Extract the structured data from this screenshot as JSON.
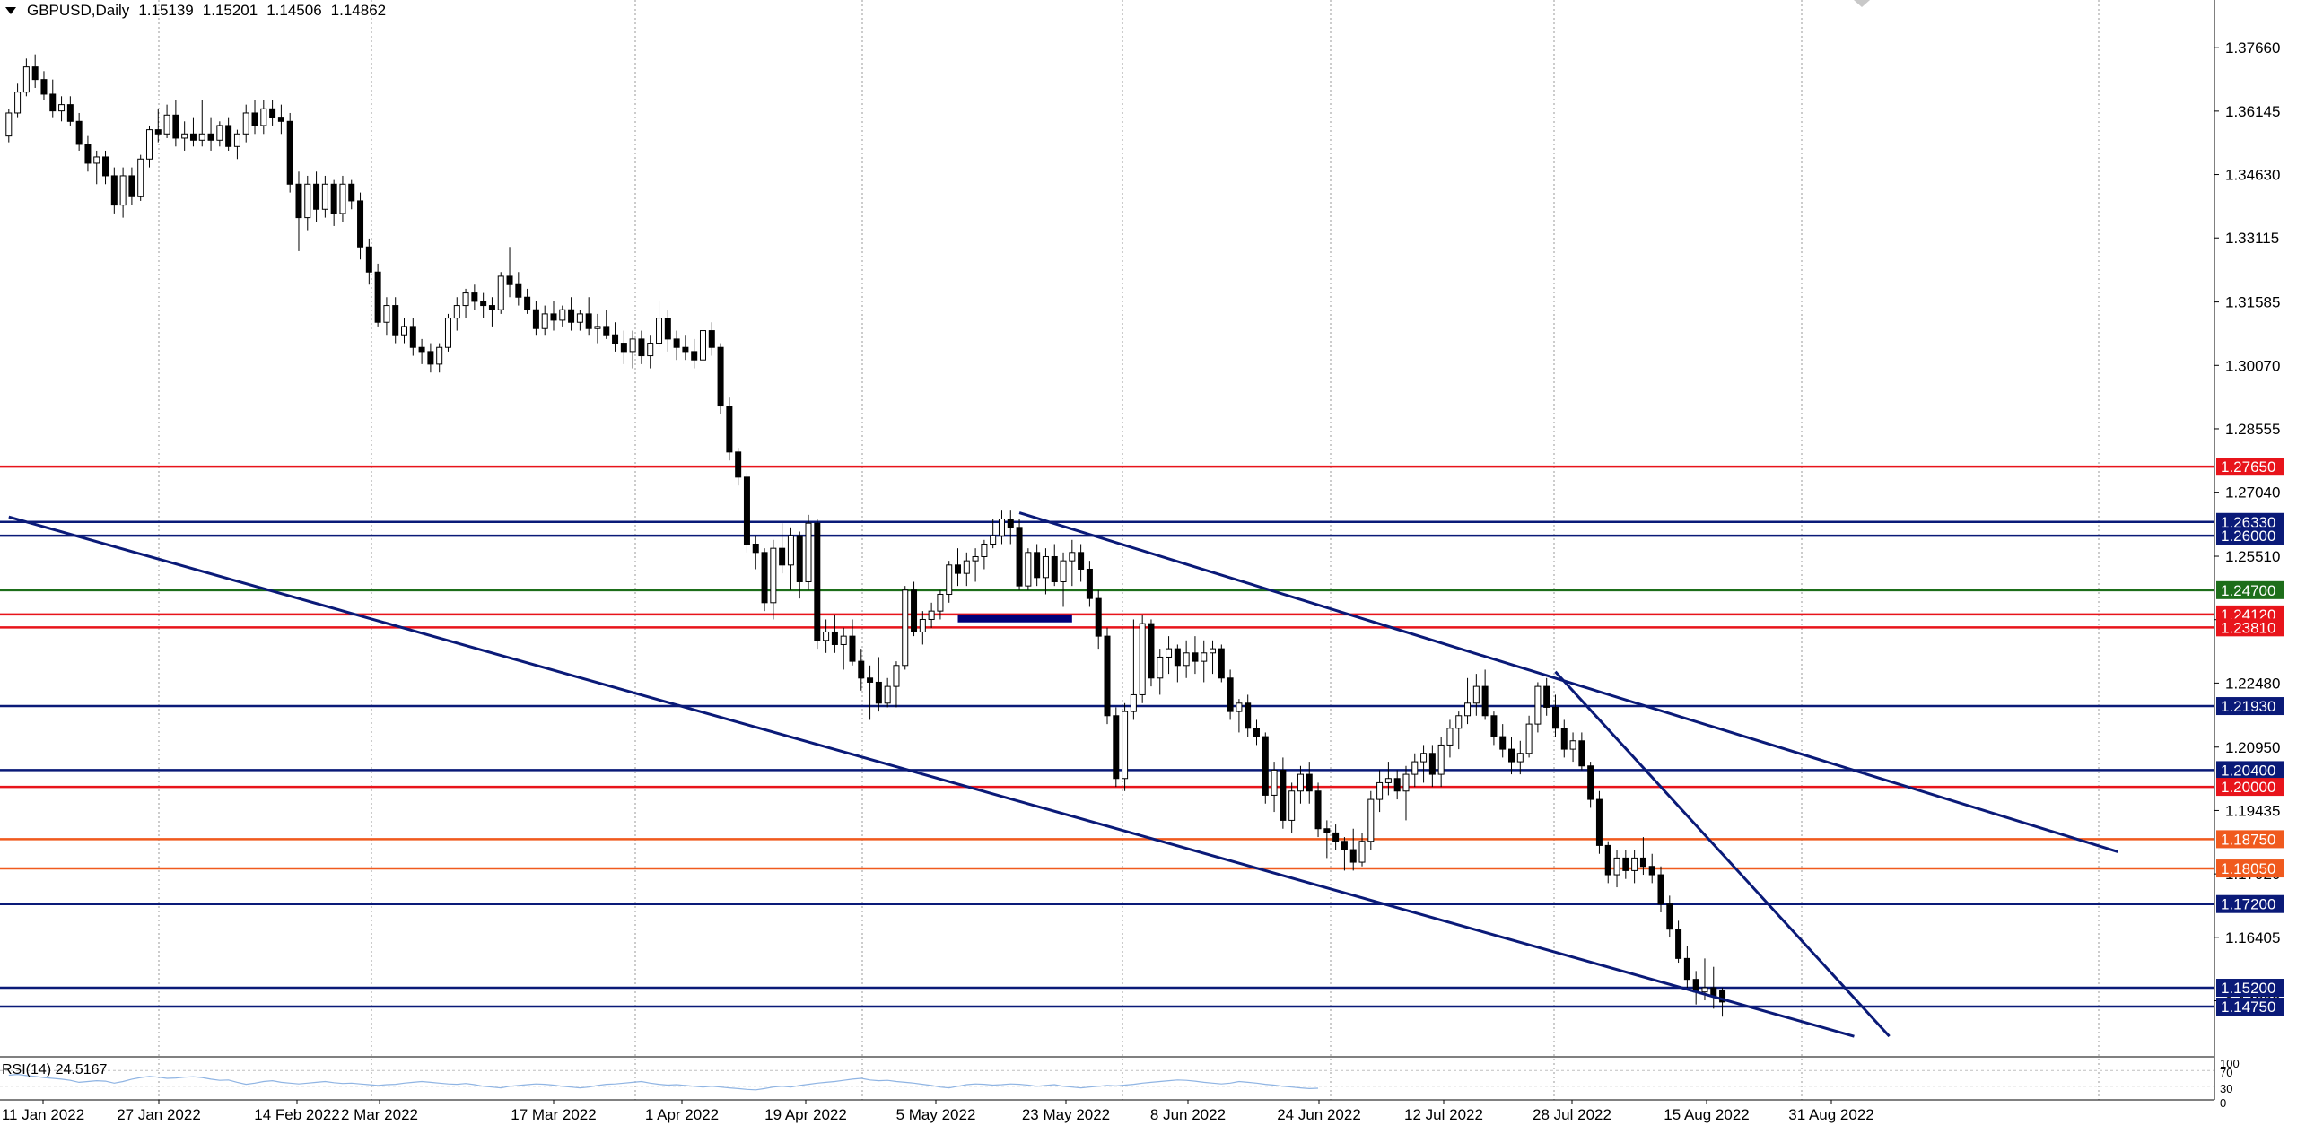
{
  "header": {
    "symbol": "GBPUSD,Daily",
    "open": "1.15139",
    "high": "1.15201",
    "low": "1.14506",
    "close": "1.14862"
  },
  "rsi": {
    "label": "RSI(14) 24.5167",
    "scale_labels": [
      "100",
      "70",
      "30",
      "0"
    ]
  },
  "colors": {
    "blue_line": "#0a1a78",
    "red_line": "#e8141b",
    "green_line": "#1d6e1a",
    "orange_line": "#f05a1e",
    "bull_candle": "#ffffff",
    "bear_candle": "#000000",
    "rsi_line": "#8fb4e3",
    "grid": "#9a9a9a"
  },
  "chart_data": {
    "type": "candlestick",
    "title": "GBPUSD,Daily",
    "ylim": [
      1.1355,
      1.388
    ],
    "price_ticks": [
      "1.37660",
      "1.36145",
      "1.34630",
      "1.33115",
      "1.31585",
      "1.30070",
      "1.28555",
      "1.27040",
      "1.25510",
      "1.23995",
      "1.22480",
      "1.20950",
      "1.19435",
      "1.17920",
      "1.16405",
      "1.14890"
    ],
    "date_ticks": [
      "11 Jan 2022",
      "27 Jan 2022",
      "14 Feb 2022",
      "2 Mar 2022",
      "17 Mar 2022",
      "1 Apr 2022",
      "19 Apr 2022",
      "5 May 2022",
      "23 May 2022",
      "8 Jun 2022",
      "24 Jun 2022",
      "12 Jul 2022",
      "28 Jul 2022",
      "15 Aug 2022",
      "31 Aug 2022"
    ],
    "levels": [
      {
        "value": 1.2765,
        "label": "1.27650",
        "color": "red"
      },
      {
        "value": 1.2633,
        "label": "1.26330",
        "color": "blue"
      },
      {
        "value": 1.26,
        "label": "1.26000",
        "color": "blue"
      },
      {
        "value": 1.247,
        "label": "1.24700",
        "color": "green"
      },
      {
        "value": 1.2412,
        "label": "1.24120",
        "color": "red"
      },
      {
        "value": 1.2381,
        "label": "1.23810",
        "color": "red"
      },
      {
        "value": 1.2193,
        "label": "1.21930",
        "color": "blue"
      },
      {
        "value": 1.204,
        "label": "1.20400",
        "color": "blue"
      },
      {
        "value": 1.2,
        "label": "1.20000",
        "color": "red"
      },
      {
        "value": 1.1875,
        "label": "1.18750",
        "color": "orange"
      },
      {
        "value": 1.1805,
        "label": "1.18050",
        "color": "orange"
      },
      {
        "value": 1.172,
        "label": "1.17200",
        "color": "blue"
      },
      {
        "value": 1.152,
        "label": "1.15200",
        "color": "blue"
      },
      {
        "value": 1.1475,
        "label": "1.14750",
        "color": "blue"
      }
    ],
    "trendlines": [
      {
        "from": [
          0,
          1.2645
        ],
        "to": [
          210,
          1.1404
        ]
      },
      {
        "from": [
          115,
          1.2655
        ],
        "to": [
          240,
          1.1845
        ]
      },
      {
        "from": [
          176,
          1.2275
        ],
        "to": [
          214,
          1.1404
        ]
      }
    ],
    "zones": [
      {
        "x0": 108,
        "x1": 121,
        "y0": 1.2393,
        "y1": 1.2412
      }
    ],
    "candles": [
      [
        1.3555,
        1.362,
        1.354,
        1.361
      ],
      [
        1.361,
        1.368,
        1.36,
        1.366
      ],
      [
        1.366,
        1.374,
        1.365,
        1.372
      ],
      [
        1.372,
        1.375,
        1.367,
        1.369
      ],
      [
        1.369,
        1.371,
        1.364,
        1.3655
      ],
      [
        1.3655,
        1.369,
        1.36,
        1.3615
      ],
      [
        1.3615,
        1.365,
        1.359,
        1.363
      ],
      [
        1.363,
        1.365,
        1.358,
        1.359
      ],
      [
        1.359,
        1.361,
        1.352,
        1.3535
      ],
      [
        1.3535,
        1.3555,
        1.347,
        1.349
      ],
      [
        1.349,
        1.352,
        1.344,
        1.3505
      ],
      [
        1.3505,
        1.352,
        1.344,
        1.346
      ],
      [
        1.346,
        1.348,
        1.337,
        1.339
      ],
      [
        1.339,
        1.348,
        1.336,
        1.346
      ],
      [
        1.346,
        1.348,
        1.339,
        1.341
      ],
      [
        1.341,
        1.351,
        1.34,
        1.35
      ],
      [
        1.35,
        1.358,
        1.348,
        1.357
      ],
      [
        1.357,
        1.362,
        1.354,
        1.356
      ],
      [
        1.356,
        1.363,
        1.355,
        1.3605
      ],
      [
        1.3605,
        1.364,
        1.353,
        1.355
      ],
      [
        1.355,
        1.359,
        1.352,
        1.356
      ],
      [
        1.356,
        1.36,
        1.353,
        1.3545
      ],
      [
        1.3545,
        1.364,
        1.353,
        1.356
      ],
      [
        1.356,
        1.36,
        1.352,
        1.3545
      ],
      [
        1.3545,
        1.359,
        1.353,
        1.358
      ],
      [
        1.358,
        1.36,
        1.352,
        1.353
      ],
      [
        1.353,
        1.357,
        1.35,
        1.356
      ],
      [
        1.356,
        1.363,
        1.354,
        1.361
      ],
      [
        1.361,
        1.364,
        1.356,
        1.358
      ],
      [
        1.358,
        1.364,
        1.356,
        1.362
      ],
      [
        1.362,
        1.364,
        1.358,
        1.36
      ],
      [
        1.36,
        1.363,
        1.356,
        1.359
      ],
      [
        1.359,
        1.361,
        1.342,
        1.344
      ],
      [
        1.344,
        1.347,
        1.328,
        1.336
      ],
      [
        1.336,
        1.346,
        1.333,
        1.344
      ],
      [
        1.344,
        1.347,
        1.335,
        1.338
      ],
      [
        1.338,
        1.346,
        1.336,
        1.344
      ],
      [
        1.344,
        1.345,
        1.334,
        1.337
      ],
      [
        1.337,
        1.346,
        1.335,
        1.344
      ],
      [
        1.344,
        1.345,
        1.338,
        1.34
      ],
      [
        1.34,
        1.342,
        1.326,
        1.329
      ],
      [
        1.329,
        1.331,
        1.32,
        1.323
      ],
      [
        1.323,
        1.325,
        1.31,
        1.311
      ],
      [
        1.311,
        1.317,
        1.308,
        1.315
      ],
      [
        1.315,
        1.317,
        1.306,
        1.308
      ],
      [
        1.308,
        1.312,
        1.306,
        1.31
      ],
      [
        1.31,
        1.312,
        1.303,
        1.305
      ],
      [
        1.305,
        1.307,
        1.301,
        1.304
      ],
      [
        1.304,
        1.306,
        1.299,
        1.301
      ],
      [
        1.301,
        1.306,
        1.299,
        1.305
      ],
      [
        1.305,
        1.313,
        1.304,
        1.312
      ],
      [
        1.312,
        1.317,
        1.309,
        1.315
      ],
      [
        1.315,
        1.319,
        1.312,
        1.318
      ],
      [
        1.318,
        1.32,
        1.314,
        1.316
      ],
      [
        1.316,
        1.318,
        1.312,
        1.315
      ],
      [
        1.315,
        1.317,
        1.31,
        1.314
      ],
      [
        1.314,
        1.323,
        1.313,
        1.322
      ],
      [
        1.322,
        1.329,
        1.317,
        1.32
      ],
      [
        1.32,
        1.323,
        1.315,
        1.317
      ],
      [
        1.317,
        1.319,
        1.313,
        1.314
      ],
      [
        1.314,
        1.316,
        1.308,
        1.3095
      ],
      [
        1.3095,
        1.315,
        1.308,
        1.313
      ],
      [
        1.313,
        1.316,
        1.309,
        1.3115
      ],
      [
        1.3115,
        1.315,
        1.31,
        1.314
      ],
      [
        1.314,
        1.317,
        1.309,
        1.311
      ],
      [
        1.311,
        1.314,
        1.309,
        1.313
      ],
      [
        1.313,
        1.317,
        1.308,
        1.3095
      ],
      [
        1.3095,
        1.313,
        1.306,
        1.31
      ],
      [
        1.31,
        1.314,
        1.307,
        1.308
      ],
      [
        1.308,
        1.311,
        1.304,
        1.306
      ],
      [
        1.306,
        1.309,
        1.301,
        1.304
      ],
      [
        1.304,
        1.309,
        1.3,
        1.307
      ],
      [
        1.307,
        1.309,
        1.301,
        1.303
      ],
      [
        1.303,
        1.308,
        1.3,
        1.306
      ],
      [
        1.306,
        1.316,
        1.305,
        1.312
      ],
      [
        1.312,
        1.314,
        1.304,
        1.307
      ],
      [
        1.307,
        1.309,
        1.302,
        1.305
      ],
      [
        1.305,
        1.308,
        1.302,
        1.304
      ],
      [
        1.304,
        1.307,
        1.3,
        1.302
      ],
      [
        1.302,
        1.31,
        1.301,
        1.309
      ],
      [
        1.309,
        1.311,
        1.303,
        1.305
      ],
      [
        1.305,
        1.306,
        1.289,
        1.291
      ],
      [
        1.291,
        1.293,
        1.278,
        1.28
      ],
      [
        1.28,
        1.281,
        1.272,
        1.274
      ],
      [
        1.274,
        1.275,
        1.256,
        1.258
      ],
      [
        1.258,
        1.26,
        1.252,
        1.256
      ],
      [
        1.256,
        1.257,
        1.242,
        1.244
      ],
      [
        1.244,
        1.259,
        1.24,
        1.257
      ],
      [
        1.257,
        1.263,
        1.251,
        1.253
      ],
      [
        1.253,
        1.262,
        1.247,
        1.26
      ],
      [
        1.26,
        1.261,
        1.245,
        1.249
      ],
      [
        1.249,
        1.265,
        1.247,
        1.263
      ],
      [
        1.263,
        1.264,
        1.233,
        1.235
      ],
      [
        1.235,
        1.24,
        1.232,
        1.237
      ],
      [
        1.237,
        1.241,
        1.232,
        1.234
      ],
      [
        1.234,
        1.238,
        1.228,
        1.236
      ],
      [
        1.236,
        1.24,
        1.229,
        1.23
      ],
      [
        1.23,
        1.233,
        1.223,
        1.226
      ],
      [
        1.226,
        1.229,
        1.216,
        1.225
      ],
      [
        1.225,
        1.231,
        1.218,
        1.22
      ],
      [
        1.22,
        1.226,
        1.219,
        1.224
      ],
      [
        1.224,
        1.23,
        1.219,
        1.229
      ],
      [
        1.229,
        1.248,
        1.228,
        1.247
      ],
      [
        1.247,
        1.249,
        1.236,
        1.237
      ],
      [
        1.237,
        1.242,
        1.234,
        1.24
      ],
      [
        1.24,
        1.244,
        1.238,
        1.242
      ],
      [
        1.242,
        1.247,
        1.24,
        1.246
      ],
      [
        1.246,
        1.254,
        1.244,
        1.253
      ],
      [
        1.253,
        1.257,
        1.248,
        1.251
      ],
      [
        1.251,
        1.256,
        1.248,
        1.254
      ],
      [
        1.254,
        1.257,
        1.249,
        1.255
      ],
      [
        1.255,
        1.259,
        1.252,
        1.258
      ],
      [
        1.258,
        1.264,
        1.257,
        1.26
      ],
      [
        1.26,
        1.266,
        1.258,
        1.264
      ],
      [
        1.264,
        1.266,
        1.258,
        1.262
      ],
      [
        1.262,
        1.264,
        1.247,
        1.248
      ],
      [
        1.248,
        1.257,
        1.247,
        1.256
      ],
      [
        1.256,
        1.258,
        1.248,
        1.25
      ],
      [
        1.25,
        1.257,
        1.246,
        1.255
      ],
      [
        1.255,
        1.258,
        1.248,
        1.249
      ],
      [
        1.249,
        1.256,
        1.243,
        1.254
      ],
      [
        1.254,
        1.259,
        1.248,
        1.256
      ],
      [
        1.256,
        1.258,
        1.249,
        1.252
      ],
      [
        1.252,
        1.254,
        1.243,
        1.245
      ],
      [
        1.245,
        1.247,
        1.233,
        1.236
      ],
      [
        1.236,
        1.238,
        1.215,
        1.217
      ],
      [
        1.217,
        1.219,
        1.2,
        1.202
      ],
      [
        1.202,
        1.22,
        1.199,
        1.218
      ],
      [
        1.218,
        1.24,
        1.216,
        1.222
      ],
      [
        1.222,
        1.241,
        1.22,
        1.239
      ],
      [
        1.239,
        1.24,
        1.224,
        1.226
      ],
      [
        1.226,
        1.233,
        1.222,
        1.231
      ],
      [
        1.231,
        1.236,
        1.227,
        1.233
      ],
      [
        1.233,
        1.234,
        1.225,
        1.229
      ],
      [
        1.229,
        1.235,
        1.226,
        1.232
      ],
      [
        1.232,
        1.236,
        1.227,
        1.23
      ],
      [
        1.23,
        1.235,
        1.225,
        1.232
      ],
      [
        1.232,
        1.235,
        1.227,
        1.233
      ],
      [
        1.233,
        1.234,
        1.225,
        1.226
      ],
      [
        1.226,
        1.228,
        1.216,
        1.218
      ],
      [
        1.218,
        1.221,
        1.213,
        1.22
      ],
      [
        1.22,
        1.222,
        1.212,
        1.214
      ],
      [
        1.214,
        1.216,
        1.21,
        1.212
      ],
      [
        1.212,
        1.213,
        1.196,
        1.198
      ],
      [
        1.198,
        1.206,
        1.194,
        1.204
      ],
      [
        1.204,
        1.207,
        1.19,
        1.192
      ],
      [
        1.192,
        1.201,
        1.189,
        1.199
      ],
      [
        1.199,
        1.205,
        1.196,
        1.203
      ],
      [
        1.203,
        1.206,
        1.196,
        1.199
      ],
      [
        1.199,
        1.201,
        1.188,
        1.19
      ],
      [
        1.19,
        1.192,
        1.183,
        1.189
      ],
      [
        1.189,
        1.191,
        1.185,
        1.187
      ],
      [
        1.187,
        1.188,
        1.18,
        1.185
      ],
      [
        1.185,
        1.19,
        1.18,
        1.182
      ],
      [
        1.182,
        1.189,
        1.181,
        1.187
      ],
      [
        1.187,
        1.199,
        1.185,
        1.197
      ],
      [
        1.197,
        1.204,
        1.194,
        1.201
      ],
      [
        1.201,
        1.206,
        1.198,
        1.202
      ],
      [
        1.202,
        1.204,
        1.197,
        1.199
      ],
      [
        1.199,
        1.205,
        1.192,
        1.203
      ],
      [
        1.203,
        1.208,
        1.2,
        1.206
      ],
      [
        1.206,
        1.21,
        1.201,
        1.208
      ],
      [
        1.208,
        1.21,
        1.2,
        1.203
      ],
      [
        1.203,
        1.212,
        1.2,
        1.21
      ],
      [
        1.21,
        1.216,
        1.207,
        1.214
      ],
      [
        1.214,
        1.218,
        1.209,
        1.217
      ],
      [
        1.217,
        1.226,
        1.215,
        1.22
      ],
      [
        1.22,
        1.227,
        1.217,
        1.224
      ],
      [
        1.224,
        1.228,
        1.216,
        1.217
      ],
      [
        1.217,
        1.218,
        1.21,
        1.212
      ],
      [
        1.212,
        1.215,
        1.207,
        1.209
      ],
      [
        1.209,
        1.212,
        1.203,
        1.206
      ],
      [
        1.206,
        1.211,
        1.203,
        1.208
      ],
      [
        1.208,
        1.217,
        1.207,
        1.215
      ],
      [
        1.215,
        1.225,
        1.213,
        1.224
      ],
      [
        1.224,
        1.226,
        1.217,
        1.219
      ],
      [
        1.219,
        1.222,
        1.212,
        1.214
      ],
      [
        1.214,
        1.216,
        1.207,
        1.209
      ],
      [
        1.209,
        1.213,
        1.206,
        1.211
      ],
      [
        1.211,
        1.213,
        1.204,
        1.205
      ],
      [
        1.205,
        1.206,
        1.195,
        1.197
      ],
      [
        1.197,
        1.199,
        1.184,
        1.186
      ],
      [
        1.186,
        1.187,
        1.177,
        1.179
      ],
      [
        1.179,
        1.185,
        1.176,
        1.183
      ],
      [
        1.183,
        1.185,
        1.178,
        1.18
      ],
      [
        1.18,
        1.185,
        1.177,
        1.183
      ],
      [
        1.183,
        1.188,
        1.179,
        1.181
      ],
      [
        1.181,
        1.184,
        1.177,
        1.179
      ],
      [
        1.179,
        1.181,
        1.17,
        1.172
      ],
      [
        1.172,
        1.174,
        1.164,
        1.166
      ],
      [
        1.166,
        1.168,
        1.158,
        1.159
      ],
      [
        1.159,
        1.162,
        1.152,
        1.154
      ],
      [
        1.154,
        1.156,
        1.148,
        1.151
      ],
      [
        1.151,
        1.159,
        1.149,
        1.152
      ],
      [
        1.152,
        1.157,
        1.147,
        1.15
      ],
      [
        1.1514,
        1.152,
        1.1451,
        1.1486
      ]
    ],
    "rsi_values": [
      58,
      60,
      57,
      55,
      52,
      50,
      48,
      45,
      40,
      42,
      44,
      43,
      38,
      42,
      48,
      52,
      55,
      53,
      50,
      51,
      53,
      54,
      52,
      48,
      45,
      46,
      40,
      35,
      38,
      42,
      44,
      40,
      38,
      36,
      38,
      40,
      42,
      39,
      37,
      38,
      36,
      34,
      32,
      34,
      35,
      38,
      40,
      42,
      40,
      38,
      36,
      35,
      37,
      34,
      30,
      28,
      26,
      30,
      32,
      34,
      36,
      35,
      33,
      30,
      28,
      26,
      28,
      32,
      35,
      36,
      38,
      40,
      42,
      38,
      35,
      33,
      34,
      32,
      30,
      28,
      30,
      28,
      26,
      24,
      22,
      21,
      24,
      28,
      30,
      28,
      32,
      35,
      38,
      40,
      42,
      45,
      48,
      50,
      46,
      44,
      45,
      42,
      40,
      38,
      35,
      32,
      28,
      26,
      30,
      34,
      36,
      35,
      33,
      34,
      36,
      35,
      33,
      30,
      32,
      34,
      30,
      28,
      26,
      28,
      30,
      32,
      31,
      33,
      35,
      38,
      40,
      42,
      44,
      46,
      45,
      43,
      40,
      38,
      36,
      38,
      42,
      40,
      38,
      35,
      33,
      30,
      28,
      26,
      24,
      25
    ],
    "xlim": [
      -1,
      251
    ]
  }
}
